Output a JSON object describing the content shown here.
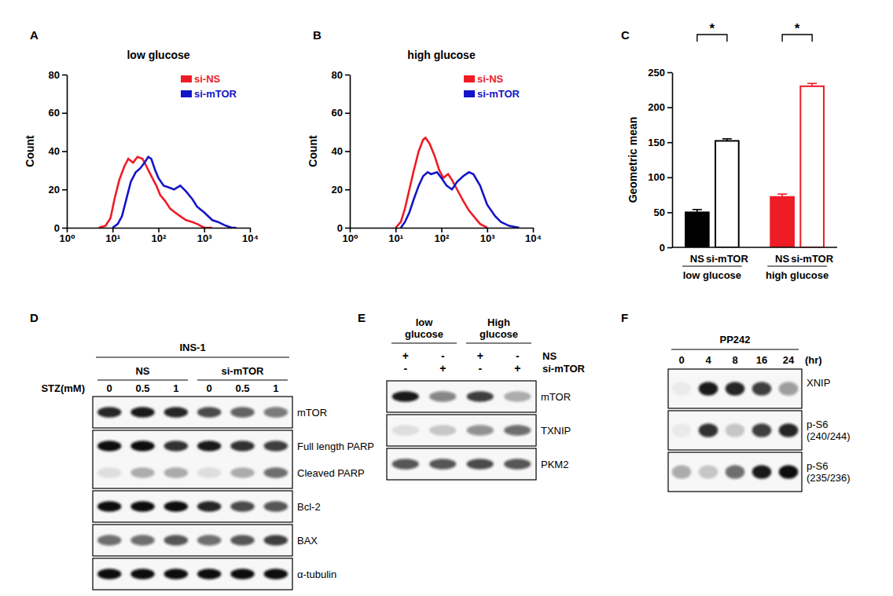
{
  "chart_data": [
    {
      "panel": "A",
      "type": "line",
      "title": "low glucose",
      "y_label": "Count",
      "log": "x",
      "legend": "top-right",
      "xlim": [
        1,
        10000
      ],
      "xticks": [
        {
          "value": 1,
          "label": "10⁰"
        },
        {
          "value": 10,
          "label": "10¹"
        },
        {
          "value": 100,
          "label": "10²"
        },
        {
          "value": 1000,
          "label": "10³"
        },
        {
          "value": 10000,
          "label": "10⁴"
        }
      ],
      "ylim": [
        0,
        80
      ],
      "yticks": [
        0,
        20,
        40,
        60,
        80
      ],
      "series": [
        {
          "name": "si-NS",
          "color": "#ee1c25",
          "x": [
            5,
            7,
            9,
            11,
            14,
            18,
            22,
            28,
            35,
            45,
            55,
            70,
            90,
            110,
            140,
            180,
            230,
            300,
            400,
            550,
            700,
            1000,
            1500
          ],
          "values": [
            0,
            1,
            5,
            15,
            25,
            32,
            36,
            34,
            37,
            36,
            32,
            27,
            22,
            17,
            14,
            10,
            8,
            6,
            4,
            3,
            2,
            0,
            0
          ]
        },
        {
          "name": "si-mTOR",
          "color": "#1414c8",
          "x": [
            10,
            13,
            16,
            20,
            25,
            32,
            40,
            50,
            60,
            70,
            85,
            100,
            130,
            170,
            220,
            300,
            400,
            550,
            700,
            1000,
            1500,
            2000,
            3000,
            4000,
            5000
          ],
          "values": [
            0,
            2,
            6,
            15,
            24,
            29,
            31,
            34,
            37,
            36,
            30,
            26,
            22,
            21,
            20,
            22,
            19,
            15,
            11,
            8,
            4,
            3,
            1,
            0,
            0
          ]
        }
      ]
    },
    {
      "panel": "B",
      "type": "line",
      "title": "high glucose",
      "y_label": "Count",
      "log": "x",
      "legend": "top-right",
      "xlim": [
        1,
        10000
      ],
      "xticks": [
        {
          "value": 1,
          "label": "10⁰"
        },
        {
          "value": 10,
          "label": "10¹"
        },
        {
          "value": 100,
          "label": "10²"
        },
        {
          "value": 1000,
          "label": "10³"
        },
        {
          "value": 10000,
          "label": "10⁴"
        }
      ],
      "ylim": [
        0,
        80
      ],
      "yticks": [
        0,
        20,
        40,
        60,
        80
      ],
      "series": [
        {
          "name": "si-NS",
          "color": "#ee1c25",
          "x": [
            10,
            13,
            16,
            20,
            25,
            32,
            40,
            45,
            55,
            70,
            90,
            110,
            140,
            170,
            220,
            300,
            400,
            550,
            700,
            1000
          ],
          "values": [
            0,
            3,
            10,
            20,
            30,
            40,
            46,
            47,
            44,
            38,
            30,
            26,
            28,
            25,
            20,
            14,
            9,
            5,
            2,
            0
          ]
        },
        {
          "name": "si-mTOR",
          "color": "#1414c8",
          "x": [
            13,
            16,
            20,
            25,
            32,
            40,
            50,
            60,
            80,
            100,
            130,
            170,
            220,
            300,
            400,
            500,
            700,
            1000,
            1500,
            2000,
            3000,
            5000
          ],
          "values": [
            0,
            3,
            8,
            15,
            22,
            27,
            29,
            28,
            29,
            26,
            22,
            20,
            24,
            27,
            29,
            28,
            22,
            12,
            6,
            3,
            1,
            0
          ]
        }
      ]
    },
    {
      "panel": "C",
      "type": "bar",
      "y_label": "Geometric mean",
      "categories": [
        "low glucose",
        "high glucose"
      ],
      "ylim": [
        0,
        250
      ],
      "yticks": [
        0,
        50,
        100,
        150,
        200,
        250
      ],
      "annotations": [
        "*",
        "*"
      ],
      "series": [
        {
          "name": "NS",
          "marker": "filled",
          "colors": [
            "#000000",
            "#ee1c25"
          ],
          "values": [
            50,
            72
          ],
          "errors": [
            4,
            4
          ]
        },
        {
          "name": "si-mTOR",
          "marker": "open",
          "colors": [
            "#000000",
            "#ee1c25"
          ],
          "values": [
            152,
            230
          ],
          "errors": [
            3,
            4
          ]
        }
      ]
    },
    {
      "panel": "D",
      "type": "blot",
      "title": "INS-1",
      "groups": [
        "NS",
        "si-mTOR"
      ],
      "lane_label": "STZ(mM)",
      "lanes": [
        0,
        0.5,
        1,
        0,
        0.5,
        1
      ],
      "rows": [
        {
          "bands": [
            {
              "label": "mTOR",
              "values": [
                0.9,
                0.95,
                0.9,
                0.75,
                0.65,
                0.55
              ]
            }
          ]
        },
        {
          "bands": [
            {
              "label": "Full length PARP",
              "values": [
                1,
                1,
                0.85,
                0.95,
                0.85,
                0.8
              ]
            },
            {
              "label": "Cleaved PARP",
              "values": [
                0.1,
                0.3,
                0.35,
                0.1,
                0.3,
                0.6
              ]
            }
          ]
        },
        {
          "bands": [
            {
              "label": "Bcl-2",
              "values": [
                1,
                1,
                1,
                0.9,
                0.75,
                0.7
              ]
            }
          ]
        },
        {
          "bands": [
            {
              "label": "BAX",
              "values": [
                0.6,
                0.6,
                0.7,
                0.6,
                0.7,
                0.8
              ]
            }
          ]
        },
        {
          "bands": [
            {
              "label": "α-tubulin",
              "values": [
                1,
                1,
                1,
                1,
                1,
                1
              ]
            }
          ]
        }
      ]
    },
    {
      "panel": "E",
      "type": "blot",
      "groups": [
        "low glucose",
        "High glucose"
      ],
      "treatments": [
        {
          "label": "NS",
          "marks": [
            "+",
            "-",
            "+",
            "-"
          ]
        },
        {
          "label": "si-mTOR",
          "marks": [
            "-",
            "+",
            "-",
            "+"
          ]
        }
      ],
      "rows": [
        {
          "bands": [
            {
              "label": "mTOR",
              "values": [
                0.95,
                0.5,
                0.8,
                0.3
              ]
            }
          ]
        },
        {
          "bands": [
            {
              "label": "TXNIP",
              "values": [
                0.1,
                0.2,
                0.45,
                0.6
              ]
            }
          ]
        },
        {
          "bands": [
            {
              "label": "PKM2",
              "values": [
                0.7,
                0.7,
                0.75,
                0.7
              ]
            }
          ]
        }
      ]
    },
    {
      "panel": "F",
      "type": "blot",
      "title": "PP242",
      "lane_label": "(hr)",
      "lanes": [
        0,
        4,
        8,
        16,
        24
      ],
      "rows": [
        {
          "bands": [
            {
              "label": "XNIP",
              "values": [
                0.05,
                0.95,
                0.9,
                0.8,
                0.4
              ]
            }
          ]
        },
        {
          "bands": [
            {
              "label": "p-S6 (240/244)",
              "values": [
                0.05,
                0.85,
                0.2,
                0.8,
                0.9
              ]
            }
          ]
        },
        {
          "bands": [
            {
              "label": "p-S6 (235/236)",
              "values": [
                0.3,
                0.2,
                0.6,
                0.95,
                1
              ]
            }
          ]
        }
      ]
    }
  ]
}
